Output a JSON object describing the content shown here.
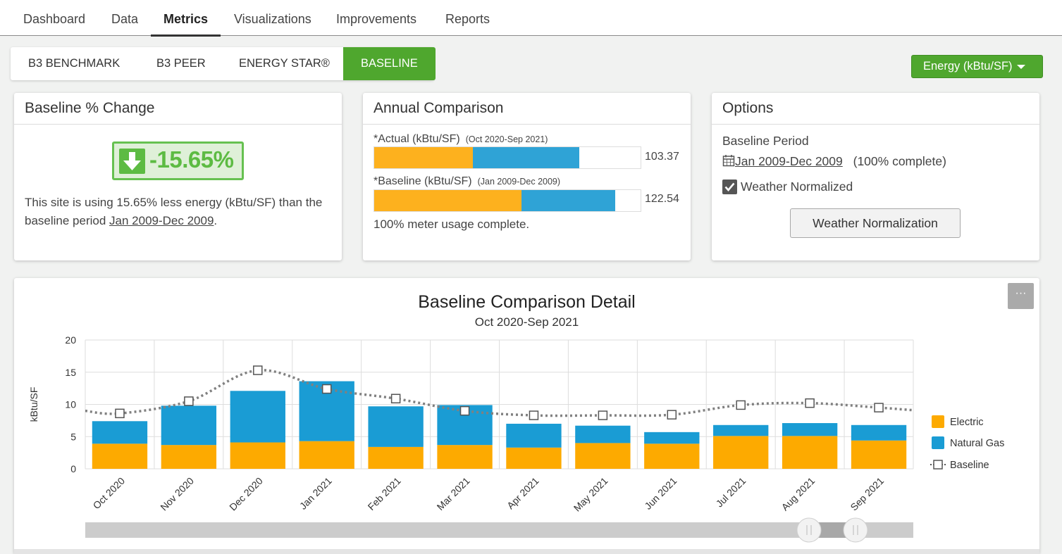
{
  "nav": {
    "tabs": [
      {
        "label": "Dashboard"
      },
      {
        "label": "Data"
      },
      {
        "label": "Metrics"
      },
      {
        "label": "Visualizations"
      },
      {
        "label": "Improvements"
      },
      {
        "label": "Reports"
      }
    ],
    "active": "Metrics"
  },
  "subtabs": {
    "items": [
      {
        "label": "B3 BENCHMARK"
      },
      {
        "label": "B3 PEER"
      },
      {
        "label": "ENERGY STAR®"
      },
      {
        "label": "BASELINE"
      }
    ],
    "active": "BASELINE"
  },
  "unit_dropdown": {
    "label": "Energy (kBtu/SF)"
  },
  "baseline_change": {
    "title": "Baseline % Change",
    "value": "-15.65%",
    "text_before": "This site is using 15.65% less energy (kBtu/SF) than the baseline period ",
    "text_period": "Jan 2009-Dec 2009",
    "text_after": "."
  },
  "annual": {
    "title": "Annual Comparison",
    "actual_label": "*Actual (kBtu/SF)",
    "actual_period": "(Oct 2020-Sep 2021)",
    "actual_value": "103.37",
    "actual_split": {
      "electric": 0.37,
      "gas": 0.4
    },
    "baseline_label": "*Baseline (kBtu/SF)",
    "baseline_period": "(Jan 2009-Dec 2009)",
    "baseline_value": "122.54",
    "baseline_split": {
      "electric": 0.553,
      "gas": 0.352
    },
    "footer": "100% meter usage complete."
  },
  "options": {
    "title": "Options",
    "baseline_period_label": "Baseline Period",
    "period_link": "Jan 2009-Dec 2009",
    "period_status": "(100% complete)",
    "weather_normalized_label": "Weather Normalized",
    "weather_normalized": true,
    "weather_button": "Weather Normalization"
  },
  "colors": {
    "brand_green": "#4fa72e",
    "electric": "#fdaa00",
    "natural_gas": "#1a9cd4",
    "baseline": "#808080"
  },
  "chart_menu_label": "···",
  "chart_data": {
    "type": "bar",
    "stacked": true,
    "title": "Baseline Comparison Detail",
    "subtitle": "Oct 2020-Sep 2021",
    "ylabel": "kBtu/SF",
    "ylim": [
      0,
      20
    ],
    "yticks": [
      0,
      5,
      10,
      15,
      20
    ],
    "grid": true,
    "legend_position": "right",
    "categories": [
      "Oct 2020",
      "Nov 2020",
      "Dec 2020",
      "Jan 2021",
      "Feb 2021",
      "Mar 2021",
      "Apr 2021",
      "May 2021",
      "Jun 2021",
      "Jul 2021",
      "Aug 2021",
      "Sep 2021"
    ],
    "series": [
      {
        "name": "Electric",
        "kind": "bar",
        "values": [
          3.9,
          3.7,
          4.1,
          4.3,
          3.4,
          3.7,
          3.3,
          4.0,
          3.9,
          5.1,
          5.1,
          4.4
        ]
      },
      {
        "name": "Natural Gas",
        "kind": "bar",
        "values": [
          3.5,
          6.1,
          8.0,
          9.3,
          6.3,
          6.2,
          3.7,
          2.7,
          1.8,
          1.7,
          2.0,
          2.4
        ]
      },
      {
        "name": "Baseline",
        "kind": "line",
        "values": [
          8.6,
          10.5,
          15.3,
          12.4,
          10.9,
          9.0,
          8.3,
          8.3,
          8.4,
          9.9,
          10.2,
          9.5
        ]
      }
    ]
  }
}
